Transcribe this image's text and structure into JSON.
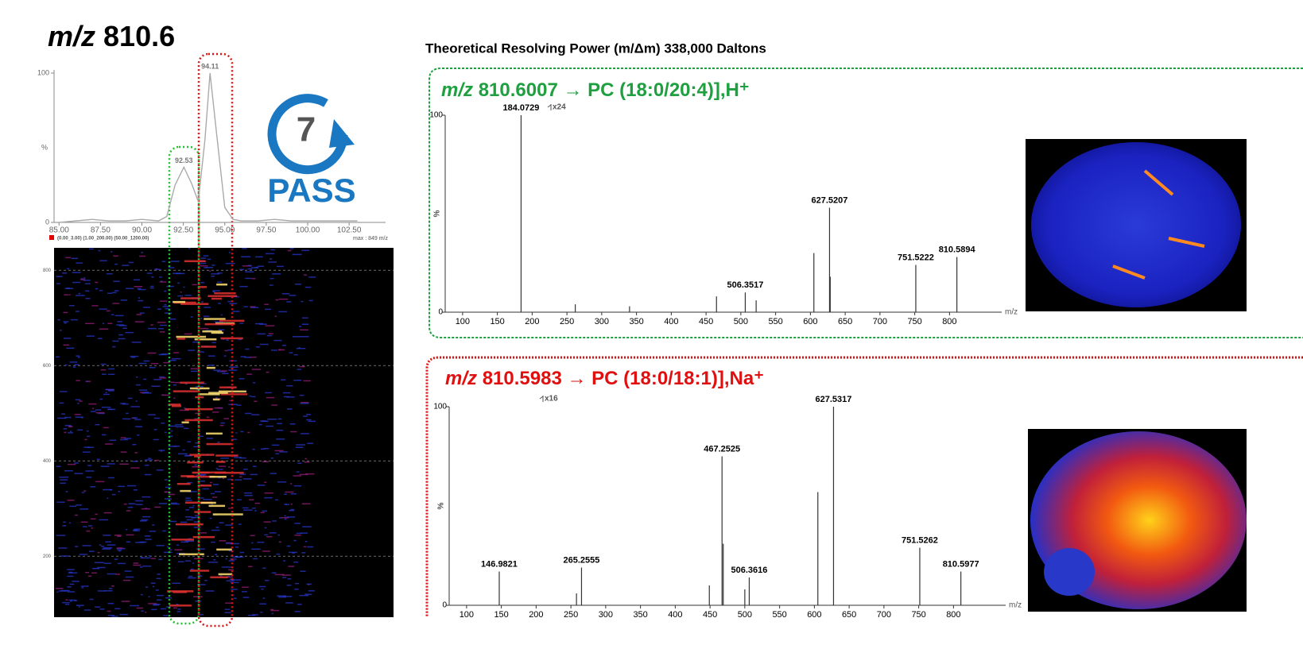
{
  "title": {
    "prefix": "m/z",
    "value": "810.6"
  },
  "resolving_power": "Theoretical Resolving Power (m/Δm) 338,000 Daltons",
  "badge": {
    "number": "7",
    "label": "PASS"
  },
  "chart_data": [
    {
      "type": "line",
      "color": "#aaaaaa",
      "x": [
        85,
        86,
        87,
        88,
        89,
        90,
        91,
        91.5,
        92,
        92.53,
        93,
        93.4,
        93.8,
        94.11,
        94.5,
        95,
        95.5,
        96,
        97,
        98,
        99,
        100,
        101,
        102,
        103
      ],
      "values": [
        0,
        1,
        2,
        1,
        1,
        2,
        1,
        4,
        25,
        37,
        26,
        14,
        55,
        100,
        60,
        10,
        2,
        1,
        1,
        2,
        1,
        1,
        1,
        1,
        1
      ],
      "peak_labels": [
        null,
        null,
        null,
        null,
        null,
        null,
        null,
        null,
        null,
        "92.53",
        null,
        null,
        null,
        "94.11",
        null,
        null,
        null,
        null,
        null,
        null,
        null,
        null,
        null,
        null,
        null
      ],
      "xlim": [
        84.7,
        104.7
      ],
      "ylim": [
        0,
        100
      ],
      "xticks": [
        {
          "value": 85,
          "label": "85.00"
        },
        {
          "value": 87.5,
          "label": "87.50"
        },
        {
          "value": 90,
          "label": "90.00"
        },
        {
          "value": 92.5,
          "label": "92.50"
        },
        {
          "value": 95,
          "label": "95.00"
        },
        {
          "value": 97.5,
          "label": "97.50"
        },
        {
          "value": 100,
          "label": "100.00"
        },
        {
          "value": 102.5,
          "label": "102.50"
        }
      ],
      "yticks": [
        0,
        100
      ],
      "y_label": "%",
      "legend": "(0.00_3.00) (1.00_200.00) (50.00_1200.00)",
      "legend_color": "#e00000",
      "max_label": "max : 849 m/z"
    },
    {
      "type": "heatmap",
      "ylim": [
        72,
        847
      ],
      "yticks": [
        200,
        400,
        600,
        800
      ]
    },
    {
      "type": "stick",
      "color": "#1fa040",
      "heading_prefix": "m/z",
      "heading": "810.6007 → PC (18:0/20:4)],H⁺",
      "x": [
        184.0729,
        262,
        340,
        465,
        506.3517,
        522,
        605,
        627.5207,
        628.5,
        751.5222,
        810.5894
      ],
      "values": [
        100,
        4,
        3,
        8,
        10,
        6,
        30,
        53,
        18,
        24,
        28
      ],
      "peak_labels": [
        "184.0729",
        null,
        null,
        null,
        "506.3517",
        null,
        null,
        "627.5207",
        null,
        "751.5222",
        "810.5894"
      ],
      "zoom_label": "x24",
      "xlim": [
        75,
        875
      ],
      "ylim": [
        0,
        100
      ],
      "xticks": [
        100,
        150,
        200,
        250,
        300,
        350,
        400,
        450,
        500,
        550,
        600,
        650,
        700,
        750,
        800
      ],
      "yticks": [
        0,
        100
      ],
      "y_label": "%",
      "x_label": "m/z"
    },
    {
      "type": "stick",
      "color": "#e01010",
      "heading_prefix": "m/z",
      "heading": "810.5983 → PC (18:0/18:1)],Na⁺",
      "x": [
        146.9821,
        258,
        265.2555,
        449,
        467.2525,
        469,
        500,
        506.3616,
        605,
        627.5317,
        751.5262,
        810.5977
      ],
      "values": [
        17,
        6,
        19,
        10,
        75,
        31,
        8,
        14,
        57,
        100,
        29,
        17
      ],
      "peak_labels": [
        "146.9821",
        null,
        "265.2555",
        null,
        "467.2525",
        null,
        null,
        "506.3616",
        null,
        "627.5317",
        "751.5262",
        "810.5977"
      ],
      "zoom_label": "x16",
      "xlim": [
        75,
        875
      ],
      "ylim": [
        0,
        100
      ],
      "xticks": [
        100,
        150,
        200,
        250,
        300,
        350,
        400,
        450,
        500,
        550,
        600,
        650,
        700,
        750,
        800
      ],
      "yticks": [
        0,
        100
      ],
      "y_label": "%",
      "x_label": "m/z"
    }
  ]
}
